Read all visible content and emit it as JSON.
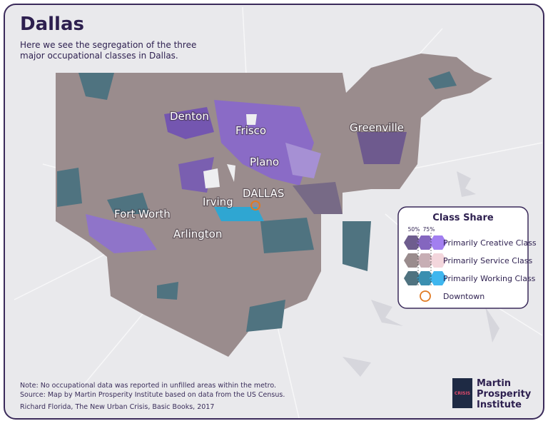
{
  "header": {
    "title": "Dallas",
    "subtitle_lines": [
      "Here we see the segregation of the three",
      "major occupational classes in Dallas."
    ]
  },
  "map": {
    "cities": [
      "Denton",
      "Frisco",
      "Greenville",
      "Plano",
      "DALLAS",
      "Irving",
      "Fort Worth",
      "Arlington"
    ]
  },
  "legend": {
    "title": "Class Share",
    "scale_labels": [
      "50%",
      "75%"
    ],
    "items": [
      "Primarily Creative Class",
      "Primarily Service Class",
      "Primarily Working Class",
      "Downtown"
    ]
  },
  "notes": [
    "Note: No occupational data was reported in unfilled areas within the metro.",
    "Source: Map by Martin Prosperity Institute based on data from the US Census.",
    "Richard Florida, The New Urban Crisis, Basic Books, 2017"
  ],
  "logo": {
    "lines": [
      "Martin",
      "Prosperity",
      "Institute"
    ],
    "badge": "CRISIS"
  }
}
